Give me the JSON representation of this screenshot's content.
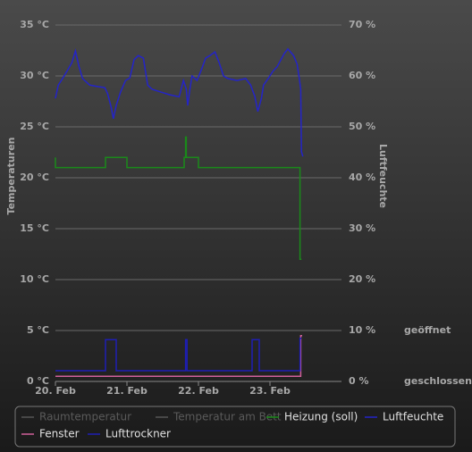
{
  "chart_data": {
    "type": "line",
    "xlim": [
      0,
      4
    ],
    "xticks": [
      {
        "value": 0,
        "label": "20. Feb"
      },
      {
        "value": 1,
        "label": "21. Feb"
      },
      {
        "value": 2,
        "label": "22. Feb"
      },
      {
        "value": 3,
        "label": "23. Feb"
      }
    ],
    "ylabel": "Temperaturen",
    "ylim": [
      0,
      35
    ],
    "yticks": [
      {
        "value": 0,
        "label": "0 °C"
      },
      {
        "value": 5,
        "label": "5 °C"
      },
      {
        "value": 10,
        "label": "10 °C"
      },
      {
        "value": 15,
        "label": "15 °C"
      },
      {
        "value": 20,
        "label": "20 °C"
      },
      {
        "value": 25,
        "label": "25 °C"
      },
      {
        "value": 30,
        "label": "30 °C"
      },
      {
        "value": 35,
        "label": "35 °C"
      }
    ],
    "y2label": "Luftfeuchte",
    "y2lim": [
      0,
      70
    ],
    "y2ticks": [
      {
        "value": 0,
        "label": "0 %"
      },
      {
        "value": 10,
        "label": "10 %"
      },
      {
        "value": 20,
        "label": "20 %"
      },
      {
        "value": 30,
        "label": "30 %"
      },
      {
        "value": 40,
        "label": "40 %"
      },
      {
        "value": 50,
        "label": "50 %"
      },
      {
        "value": 60,
        "label": "60 %"
      },
      {
        "value": 70,
        "label": "70 %"
      }
    ],
    "y3lim": [
      0,
      7
    ],
    "y3ticks": [
      {
        "value": 0,
        "label": "geschlossen"
      },
      {
        "value": 1,
        "label": "geöffnet"
      }
    ],
    "grid": true,
    "series": [
      {
        "name": "Raumtemperatur",
        "color": "#555555",
        "hidden": true,
        "x": [],
        "values": []
      },
      {
        "name": "Temperatur am Bett",
        "color": "#555555",
        "hidden": true,
        "x": [],
        "values": []
      },
      {
        "name": "Heizung (soll)",
        "color": "#1a8a1a",
        "axis": "y",
        "x": [
          0,
          0,
          0.7,
          0.7,
          1.0,
          1.0,
          1.8,
          1.8,
          1.82,
          1.82,
          1.83,
          1.83,
          2.0,
          2.0,
          3.42,
          3.42,
          3.44
        ],
        "values": [
          22,
          21,
          21,
          22,
          22,
          21,
          21,
          22,
          22,
          24,
          24,
          22,
          22,
          21,
          21,
          12,
          12
        ]
      },
      {
        "name": "Luftfeuchte",
        "color": "#2424c8",
        "axis": "y2",
        "x": [
          0,
          0.04,
          0.1,
          0.16,
          0.23,
          0.28,
          0.33,
          0.38,
          0.48,
          0.6,
          0.69,
          0.73,
          0.78,
          0.81,
          0.85,
          0.91,
          0.98,
          1.04,
          1.1,
          1.16,
          1.23,
          1.29,
          1.35,
          1.48,
          1.6,
          1.73,
          1.79,
          1.83,
          1.85,
          1.88,
          1.91,
          1.98,
          2.04,
          2.1,
          2.16,
          2.23,
          2.29,
          2.35,
          2.41,
          2.54,
          2.66,
          2.73,
          2.79,
          2.83,
          2.88,
          2.91,
          2.98,
          3.04,
          3.1,
          3.2,
          3.25,
          3.33,
          3.38,
          3.41,
          3.43,
          3.44,
          3.46
        ],
        "values": [
          55.6,
          58.2,
          59.5,
          60.9,
          62.6,
          64.9,
          61.8,
          59.5,
          58.2,
          57.9,
          57.7,
          56.5,
          53.8,
          51.6,
          54.2,
          56.8,
          59.1,
          59.6,
          63.2,
          64.0,
          63.5,
          58.2,
          57.4,
          56.8,
          56.3,
          55.9,
          59.1,
          57.4,
          54.2,
          57.4,
          60.0,
          59.1,
          61.2,
          63.5,
          64.0,
          64.7,
          62.6,
          60.0,
          59.5,
          59.1,
          59.5,
          58.2,
          55.9,
          53.0,
          55.6,
          58.2,
          59.6,
          60.9,
          61.8,
          64.4,
          65.3,
          64.0,
          62.3,
          59.5,
          57.4,
          45.1,
          44.2
        ]
      },
      {
        "name": "Fenster",
        "color": "#d0609a",
        "axis": "y3",
        "x": [
          0,
          3.43,
          3.43,
          3.45
        ],
        "values": [
          0.1,
          0.1,
          0.9,
          0.9
        ]
      },
      {
        "name": "Lufttrockner",
        "color": "#1e1eb4",
        "axis": "y3",
        "x": [
          0,
          0.7,
          0.7,
          0.85,
          0.85,
          1.82,
          1.82,
          1.84,
          1.84,
          2.75,
          2.75,
          2.85,
          2.85,
          3.42,
          3.42,
          3.44
        ],
        "values": [
          0.21,
          0.21,
          0.82,
          0.82,
          0.21,
          0.21,
          0.82,
          0.82,
          0.21,
          0.21,
          0.82,
          0.82,
          0.21,
          0.21,
          0.85,
          0.85
        ]
      }
    ]
  }
}
